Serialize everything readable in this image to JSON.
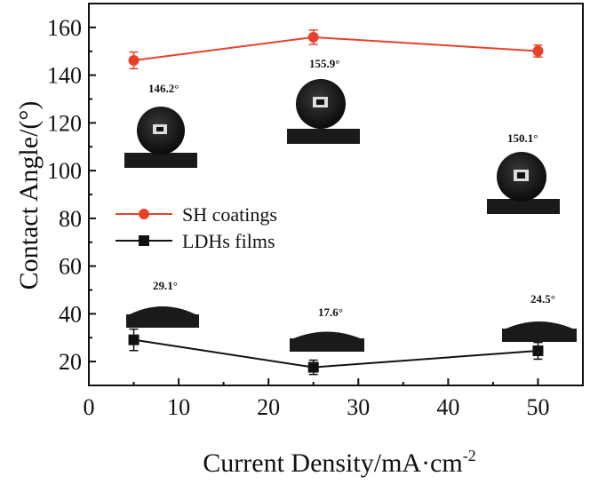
{
  "chart_data": {
    "type": "line",
    "xlabel_main": "Current Density/mA·cm",
    "xlabel_sup": "-2",
    "ylabel": "Contact Angle/(°)",
    "xlim": [
      0,
      55
    ],
    "ylim": [
      10,
      170
    ],
    "xticks": [
      "0",
      "10",
      "20",
      "30",
      "40",
      "50"
    ],
    "yticks": [
      "20",
      "40",
      "60",
      "80",
      "100",
      "120",
      "140",
      "160"
    ],
    "x": [
      5,
      25,
      50
    ],
    "series": [
      {
        "name": "SH coatings",
        "color": "#e8412a",
        "marker": "circle",
        "values": [
          146.2,
          155.9,
          150.1
        ],
        "errors": [
          3.5,
          3.0,
          2.5
        ]
      },
      {
        "name": "LDHs films",
        "color": "#111111",
        "marker": "square",
        "values": [
          29.1,
          17.6,
          24.5
        ],
        "errors": [
          4.5,
          3.0,
          3.5
        ]
      }
    ],
    "legend_position": "middle-left",
    "annotations": [
      {
        "text": "146.2°",
        "x": 5,
        "image": "superhydrophobic-droplet"
      },
      {
        "text": "155.9°",
        "x": 25,
        "image": "superhydrophobic-droplet"
      },
      {
        "text": "150.1°",
        "x": 50,
        "image": "superhydrophobic-droplet"
      },
      {
        "text": "29.1°",
        "x": 5,
        "image": "flat-droplet"
      },
      {
        "text": "17.6°",
        "x": 25,
        "image": "flat-droplet"
      },
      {
        "text": "24.5°",
        "x": 50,
        "image": "flat-droplet"
      }
    ]
  }
}
